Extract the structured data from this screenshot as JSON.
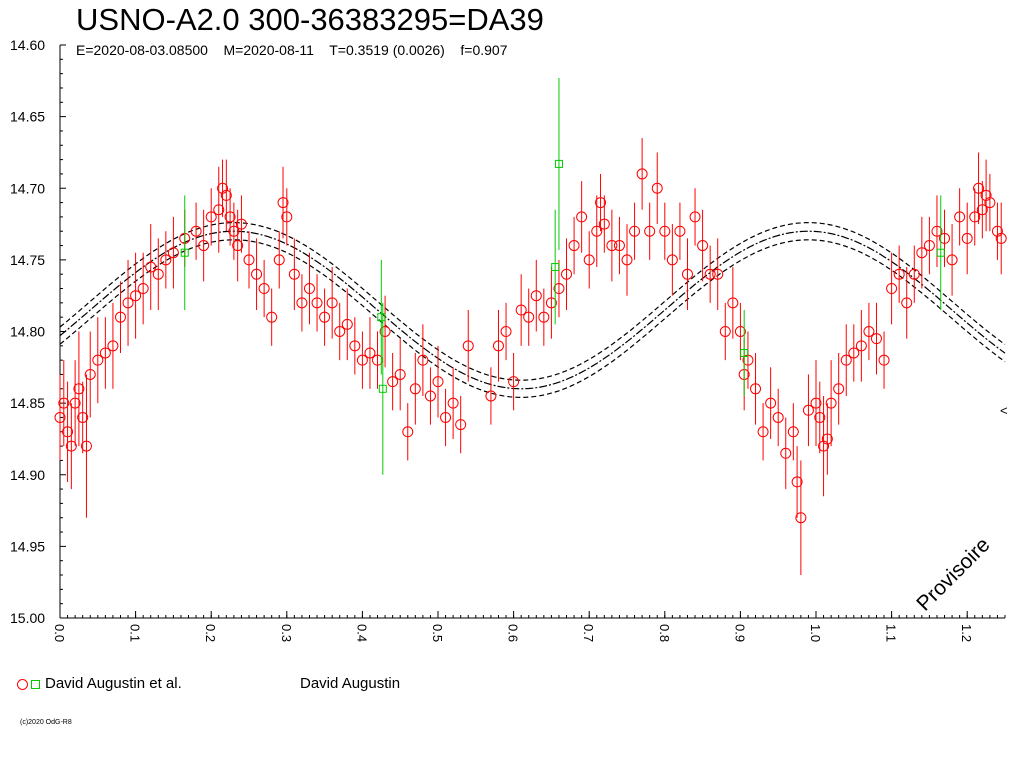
{
  "chart_data": {
    "type": "scatter",
    "title": "USNO-A2.0 300-36383295=DA39",
    "subtitle": {
      "epoch": "E=2020-08-03.08500",
      "mean_date": "M=2020-08-11",
      "period": "T=0.3519 (0.0026)",
      "f": "f=0.907"
    },
    "xlim": [
      0.0,
      1.25
    ],
    "ylim": [
      14.6,
      15.0
    ],
    "y_inverted": true,
    "x_ticks": [
      "0.0",
      "0.1",
      "0.2",
      "0.3",
      "0.4",
      "0.5",
      "0.6",
      "0.7",
      "0.8",
      "0.9",
      "1.0",
      "1.1",
      "1.2"
    ],
    "y_ticks": [
      "14.60",
      "14.65",
      "14.70",
      "14.75",
      "14.80",
      "14.85",
      "14.90",
      "14.95",
      "15.00"
    ],
    "model_curve": {
      "mean": 14.785,
      "amplitude": 0.055,
      "peak_phase": 0.23,
      "band": 0.006
    },
    "series": [
      {
        "name": "David Augustin et al.",
        "marker": "circle",
        "color": "#ff0000",
        "points": [
          [
            0.0,
            14.86,
            0.03
          ],
          [
            0.005,
            14.85,
            0.03
          ],
          [
            0.01,
            14.87,
            0.035
          ],
          [
            0.015,
            14.88,
            0.03
          ],
          [
            0.02,
            14.85,
            0.03
          ],
          [
            0.025,
            14.84,
            0.04
          ],
          [
            0.03,
            14.86,
            0.025
          ],
          [
            0.035,
            14.88,
            0.05
          ],
          [
            0.04,
            14.83,
            0.03
          ],
          [
            0.05,
            14.82,
            0.03
          ],
          [
            0.06,
            14.815,
            0.025
          ],
          [
            0.07,
            14.81,
            0.03
          ],
          [
            0.08,
            14.79,
            0.025
          ],
          [
            0.09,
            14.78,
            0.03
          ],
          [
            0.1,
            14.775,
            0.03
          ],
          [
            0.11,
            14.77,
            0.025
          ],
          [
            0.12,
            14.755,
            0.03
          ],
          [
            0.13,
            14.76,
            0.025
          ],
          [
            0.14,
            14.75,
            0.02
          ],
          [
            0.15,
            14.745,
            0.025
          ],
          [
            0.165,
            14.735,
            0.02
          ],
          [
            0.18,
            14.73,
            0.02
          ],
          [
            0.19,
            14.74,
            0.025
          ],
          [
            0.2,
            14.72,
            0.02
          ],
          [
            0.21,
            14.715,
            0.03
          ],
          [
            0.215,
            14.7,
            0.02
          ],
          [
            0.22,
            14.705,
            0.025
          ],
          [
            0.225,
            14.72,
            0.02
          ],
          [
            0.23,
            14.73,
            0.02
          ],
          [
            0.235,
            14.74,
            0.025
          ],
          [
            0.24,
            14.725,
            0.02
          ],
          [
            0.25,
            14.75,
            0.02
          ],
          [
            0.26,
            14.76,
            0.025
          ],
          [
            0.27,
            14.77,
            0.02
          ],
          [
            0.28,
            14.79,
            0.02
          ],
          [
            0.29,
            14.75,
            0.02
          ],
          [
            0.295,
            14.71,
            0.025
          ],
          [
            0.3,
            14.72,
            0.02
          ],
          [
            0.31,
            14.76,
            0.025
          ],
          [
            0.32,
            14.78,
            0.02
          ],
          [
            0.33,
            14.77,
            0.025
          ],
          [
            0.34,
            14.78,
            0.02
          ],
          [
            0.35,
            14.79,
            0.02
          ],
          [
            0.36,
            14.78,
            0.025
          ],
          [
            0.37,
            14.8,
            0.02
          ],
          [
            0.38,
            14.795,
            0.025
          ],
          [
            0.39,
            14.81,
            0.02
          ],
          [
            0.4,
            14.82,
            0.02
          ],
          [
            0.41,
            14.815,
            0.025
          ],
          [
            0.42,
            14.82,
            0.02
          ],
          [
            0.43,
            14.8,
            0.025
          ],
          [
            0.44,
            14.835,
            0.02
          ],
          [
            0.45,
            14.83,
            0.025
          ],
          [
            0.46,
            14.87,
            0.02
          ],
          [
            0.47,
            14.84,
            0.025
          ],
          [
            0.48,
            14.82,
            0.025
          ],
          [
            0.49,
            14.845,
            0.02
          ],
          [
            0.5,
            14.835,
            0.025
          ],
          [
            0.51,
            14.86,
            0.02
          ],
          [
            0.52,
            14.85,
            0.025
          ],
          [
            0.53,
            14.865,
            0.02
          ],
          [
            0.54,
            14.81,
            0.025
          ],
          [
            0.57,
            14.845,
            0.02
          ],
          [
            0.58,
            14.81,
            0.025
          ],
          [
            0.59,
            14.8,
            0.02
          ],
          [
            0.6,
            14.835,
            0.02
          ],
          [
            0.61,
            14.785,
            0.025
          ],
          [
            0.62,
            14.79,
            0.02
          ],
          [
            0.63,
            14.775,
            0.025
          ],
          [
            0.64,
            14.79,
            0.02
          ],
          [
            0.65,
            14.78,
            0.025
          ],
          [
            0.66,
            14.77,
            0.02
          ],
          [
            0.67,
            14.76,
            0.025
          ],
          [
            0.68,
            14.74,
            0.02
          ],
          [
            0.69,
            14.72,
            0.025
          ],
          [
            0.7,
            14.75,
            0.02
          ],
          [
            0.71,
            14.73,
            0.025
          ],
          [
            0.715,
            14.71,
            0.02
          ],
          [
            0.72,
            14.725,
            0.02
          ],
          [
            0.73,
            14.74,
            0.025
          ],
          [
            0.74,
            14.74,
            0.02
          ],
          [
            0.75,
            14.75,
            0.025
          ],
          [
            0.76,
            14.73,
            0.02
          ],
          [
            0.77,
            14.69,
            0.025
          ],
          [
            0.78,
            14.73,
            0.02
          ],
          [
            0.79,
            14.7,
            0.025
          ],
          [
            0.8,
            14.73,
            0.02
          ],
          [
            0.81,
            14.75,
            0.025
          ],
          [
            0.82,
            14.73,
            0.02
          ],
          [
            0.83,
            14.76,
            0.025
          ],
          [
            0.84,
            14.72,
            0.02
          ],
          [
            0.85,
            14.74,
            0.025
          ],
          [
            0.86,
            14.76,
            0.02
          ],
          [
            0.87,
            14.76,
            0.025
          ],
          [
            0.88,
            14.8,
            0.02
          ],
          [
            0.89,
            14.78,
            0.025
          ],
          [
            0.9,
            14.8,
            0.02
          ],
          [
            0.905,
            14.83,
            0.025
          ],
          [
            0.91,
            14.82,
            0.02
          ],
          [
            0.92,
            14.84,
            0.025
          ],
          [
            0.93,
            14.87,
            0.02
          ],
          [
            0.94,
            14.85,
            0.025
          ],
          [
            0.95,
            14.86,
            0.02
          ],
          [
            0.96,
            14.885,
            0.025
          ],
          [
            0.97,
            14.87,
            0.02
          ],
          [
            0.975,
            14.905,
            0.025
          ],
          [
            0.98,
            14.93,
            0.04
          ],
          [
            0.99,
            14.855,
            0.025
          ],
          [
            1.0,
            14.85,
            0.03
          ],
          [
            1.005,
            14.86,
            0.025
          ],
          [
            1.01,
            14.88,
            0.035
          ],
          [
            1.015,
            14.875,
            0.025
          ],
          [
            1.02,
            14.85,
            0.03
          ],
          [
            1.03,
            14.84,
            0.025
          ],
          [
            1.04,
            14.82,
            0.025
          ],
          [
            1.05,
            14.815,
            0.02
          ],
          [
            1.06,
            14.81,
            0.025
          ],
          [
            1.07,
            14.8,
            0.02
          ],
          [
            1.08,
            14.805,
            0.025
          ],
          [
            1.09,
            14.82,
            0.02
          ],
          [
            1.1,
            14.77,
            0.025
          ],
          [
            1.11,
            14.76,
            0.02
          ],
          [
            1.12,
            14.78,
            0.025
          ],
          [
            1.13,
            14.76,
            0.02
          ],
          [
            1.14,
            14.745,
            0.025
          ],
          [
            1.15,
            14.74,
            0.02
          ],
          [
            1.16,
            14.73,
            0.025
          ],
          [
            1.17,
            14.735,
            0.02
          ],
          [
            1.18,
            14.75,
            0.025
          ],
          [
            1.19,
            14.72,
            0.02
          ],
          [
            1.2,
            14.735,
            0.025
          ],
          [
            1.21,
            14.72,
            0.02
          ],
          [
            1.215,
            14.7,
            0.025
          ],
          [
            1.22,
            14.715,
            0.02
          ],
          [
            1.225,
            14.705,
            0.025
          ],
          [
            1.23,
            14.71,
            0.02
          ],
          [
            1.24,
            14.73,
            0.02
          ],
          [
            1.245,
            14.735,
            0.025
          ]
        ]
      },
      {
        "name": "",
        "marker": "square",
        "color": "#00cc00",
        "points": [
          [
            0.165,
            14.745,
            0.04
          ],
          [
            0.425,
            14.79,
            0.04
          ],
          [
            0.427,
            14.84,
            0.06
          ],
          [
            0.655,
            14.755,
            0.04
          ],
          [
            0.66,
            14.683,
            0.06
          ],
          [
            0.905,
            14.815,
            0.03
          ],
          [
            1.165,
            14.745,
            0.04
          ]
        ]
      }
    ],
    "legend": [
      {
        "label": "David Augustin et al."
      },
      {
        "label": "David Augustin"
      }
    ],
    "watermark": "Provisoire",
    "edge_marker": "<",
    "grid": false
  },
  "footer": {
    "copyright": "(c)2020 OdG-R8"
  }
}
